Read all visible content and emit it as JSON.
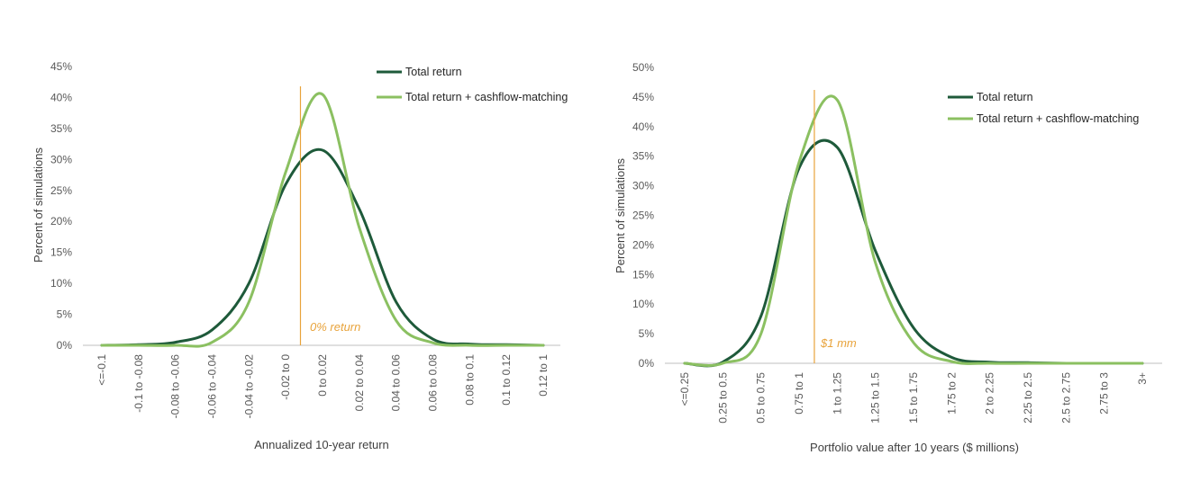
{
  "colors": {
    "total_return": "#1E5A3A",
    "cashflow_matching": "#8BC061",
    "marker": "#E8A33B",
    "axis": "#BFBFBF"
  },
  "chart_data": [
    {
      "type": "line",
      "xlabel": "Annualized 10-year return",
      "ylabel": "Percent of simulations",
      "categories": [
        "<=-0.1",
        "-0.1 to -0.08",
        "-0.08 to -0.06",
        "-0.06 to -0.04",
        "-0.04 to -0.02",
        "-0.02 to 0",
        "0 to 0.02",
        "0.02 to 0.04",
        "0.04 to 0.06",
        "0.06 to 0.08",
        "0.08 to 0.1",
        "0.1 to 0.12",
        "0.12 to 1"
      ],
      "yticks": [
        "0%",
        "5%",
        "10%",
        "15%",
        "20%",
        "25%",
        "30%",
        "35%",
        "40%",
        "45%"
      ],
      "ylim": [
        0,
        45
      ],
      "series": [
        {
          "name": "Total return",
          "values": [
            0,
            0.1,
            0.5,
            2.5,
            10,
            26,
            31.5,
            22,
            7,
            1,
            0.2,
            0.1,
            0
          ]
        },
        {
          "name": "Total return + cashflow-matching",
          "values": [
            0,
            0,
            0,
            0.5,
            7,
            28,
            40.5,
            19,
            4,
            0.4,
            0,
            0,
            0
          ]
        }
      ],
      "marker": {
        "label": "0% return",
        "x_index": 5.4
      },
      "legend": "top-right"
    },
    {
      "type": "line",
      "xlabel": "Portfolio value after 10 years ($ millions)",
      "ylabel": "Percent of simulations",
      "categories": [
        "<=0.25",
        "0.25 to 0.5",
        "0.5 to 0.75",
        "0.75 to 1",
        "1 to 1.25",
        "1.25 to 1.5",
        "1.5 to 1.75",
        "1.75 to 2",
        "2 to 2.25",
        "2.25 to 2.5",
        "2.5 to 2.75",
        "2.75 to 3",
        "3+"
      ],
      "yticks": [
        "0%",
        "5%",
        "10%",
        "15%",
        "20%",
        "25%",
        "30%",
        "35%",
        "40%",
        "45%",
        "50%"
      ],
      "ylim": [
        0,
        50
      ],
      "series": [
        {
          "name": "Total return",
          "values": [
            0,
            0.2,
            8,
            33,
            36.5,
            19,
            6,
            1,
            0.2,
            0.1,
            0,
            0,
            0
          ]
        },
        {
          "name": "Total return + cashflow-matching",
          "values": [
            0,
            0,
            5,
            34,
            44.5,
            17,
            3.5,
            0.3,
            0,
            0,
            0,
            0,
            0
          ]
        }
      ],
      "marker": {
        "label": "$1 mm",
        "x_index": 3.4
      },
      "legend": "top-right"
    }
  ]
}
